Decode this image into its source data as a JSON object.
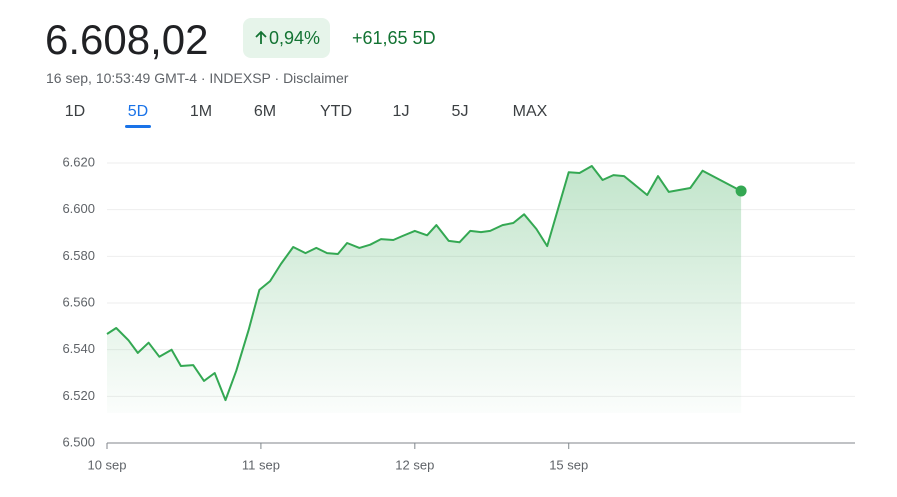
{
  "quote": {
    "price": "6.608,02",
    "change_percent": "0,94%",
    "change": "+61,65 5D",
    "meta": "16 sep, 10:53:49 GMT-4 · INDEXSP · Disclaimer"
  },
  "tabs": [
    "1D",
    "5D",
    "1M",
    "6M",
    "YTD",
    "1J",
    "5J",
    "MAX"
  ],
  "selected_tab": 1,
  "chart_data": {
    "type": "line",
    "color": "#34a853",
    "grid": true,
    "x": [
      0,
      0.06,
      0.14,
      0.2,
      0.27,
      0.34,
      0.42,
      0.48,
      0.56,
      0.63,
      0.7,
      0.77,
      0.84,
      0.92,
      0.99,
      1.06,
      1.13,
      1.21,
      1.29,
      1.36,
      1.43,
      1.5,
      1.56,
      1.64,
      1.71,
      1.78,
      1.86,
      1.92,
      2,
      2.08,
      2.14,
      2.22,
      2.29,
      2.36,
      2.43,
      2.49,
      2.57,
      2.64,
      2.71,
      2.79,
      2.86,
      3,
      3.07,
      3.15,
      3.22,
      3.29,
      3.36,
      3.51,
      3.58,
      3.65,
      3.79,
      3.87,
      4.12
    ],
    "values": [
      6546.7,
      6549.3,
      6544,
      6538.6,
      6543,
      6537,
      6540,
      6533,
      6533.4,
      6526.6,
      6530,
      6518.4,
      6531,
      6548.4,
      6565.6,
      6569.4,
      6576.7,
      6584,
      6581.4,
      6583.6,
      6581.4,
      6581,
      6585.7,
      6583.6,
      6585,
      6587.4,
      6587,
      6588.7,
      6590.9,
      6589,
      6593.4,
      6586.6,
      6586,
      6590.9,
      6590.4,
      6590.9,
      6593.4,
      6594.3,
      6598,
      6591.7,
      6584.4,
      6616,
      6615.7,
      6618.7,
      6612.7,
      6614.8,
      6614.4,
      6606.3,
      6614.4,
      6607.6,
      6609.3,
      6616.7,
      6608.02
    ],
    "xlim": [
      0,
      4.86
    ],
    "xticks": [
      {
        "value": 0,
        "label": "10 sep"
      },
      {
        "value": 1,
        "label": "11 sep"
      },
      {
        "value": 2,
        "label": "12 sep"
      },
      {
        "value": 3,
        "label": "15 sep"
      }
    ],
    "ylim": [
      6500,
      6625
    ],
    "yticks": [
      {
        "value": 6500,
        "label": "6.500"
      },
      {
        "value": 6520,
        "label": "6.520"
      },
      {
        "value": 6540,
        "label": "6.540"
      },
      {
        "value": 6560,
        "label": "6.560"
      },
      {
        "value": 6580,
        "label": "6.580"
      },
      {
        "value": 6600,
        "label": "6.600"
      },
      {
        "value": 6620,
        "label": "6.620"
      }
    ]
  }
}
